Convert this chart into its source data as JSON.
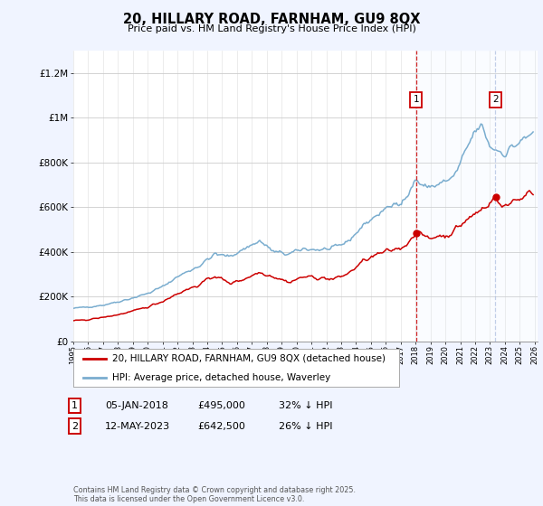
{
  "title": "20, HILLARY ROAD, FARNHAM, GU9 8QX",
  "subtitle": "Price paid vs. HM Land Registry's House Price Index (HPI)",
  "legend_label_red": "20, HILLARY ROAD, FARNHAM, GU9 8QX (detached house)",
  "legend_label_blue": "HPI: Average price, detached house, Waverley",
  "annotation1_date": "05-JAN-2018",
  "annotation1_price": "£495,000",
  "annotation1_hpi": "32% ↓ HPI",
  "annotation2_date": "12-MAY-2023",
  "annotation2_price": "£642,500",
  "annotation2_hpi": "26% ↓ HPI",
  "footer": "Contains HM Land Registry data © Crown copyright and database right 2025.\nThis data is licensed under the Open Government Licence v3.0.",
  "color_red": "#cc0000",
  "color_blue": "#7aadcf",
  "color_vline1": "#cc0000",
  "color_vline2": "#aabbdd",
  "background_color": "#f0f4ff",
  "plot_bg": "#ffffff",
  "shade_color": "#ddeeff",
  "ylim": [
    0,
    1300000
  ],
  "yticks": [
    0,
    200000,
    400000,
    600000,
    800000,
    1000000,
    1200000
  ],
  "ytick_labels": [
    "£0",
    "£200K",
    "£400K",
    "£600K",
    "£800K",
    "£1M",
    "£1.2M"
  ],
  "sale1_year": 2018.03,
  "sale2_year": 2023.37,
  "sale1_val": 495000,
  "sale2_val": 642500,
  "hpi_at_sale1": 728000,
  "hpi_at_sale2": 857000
}
